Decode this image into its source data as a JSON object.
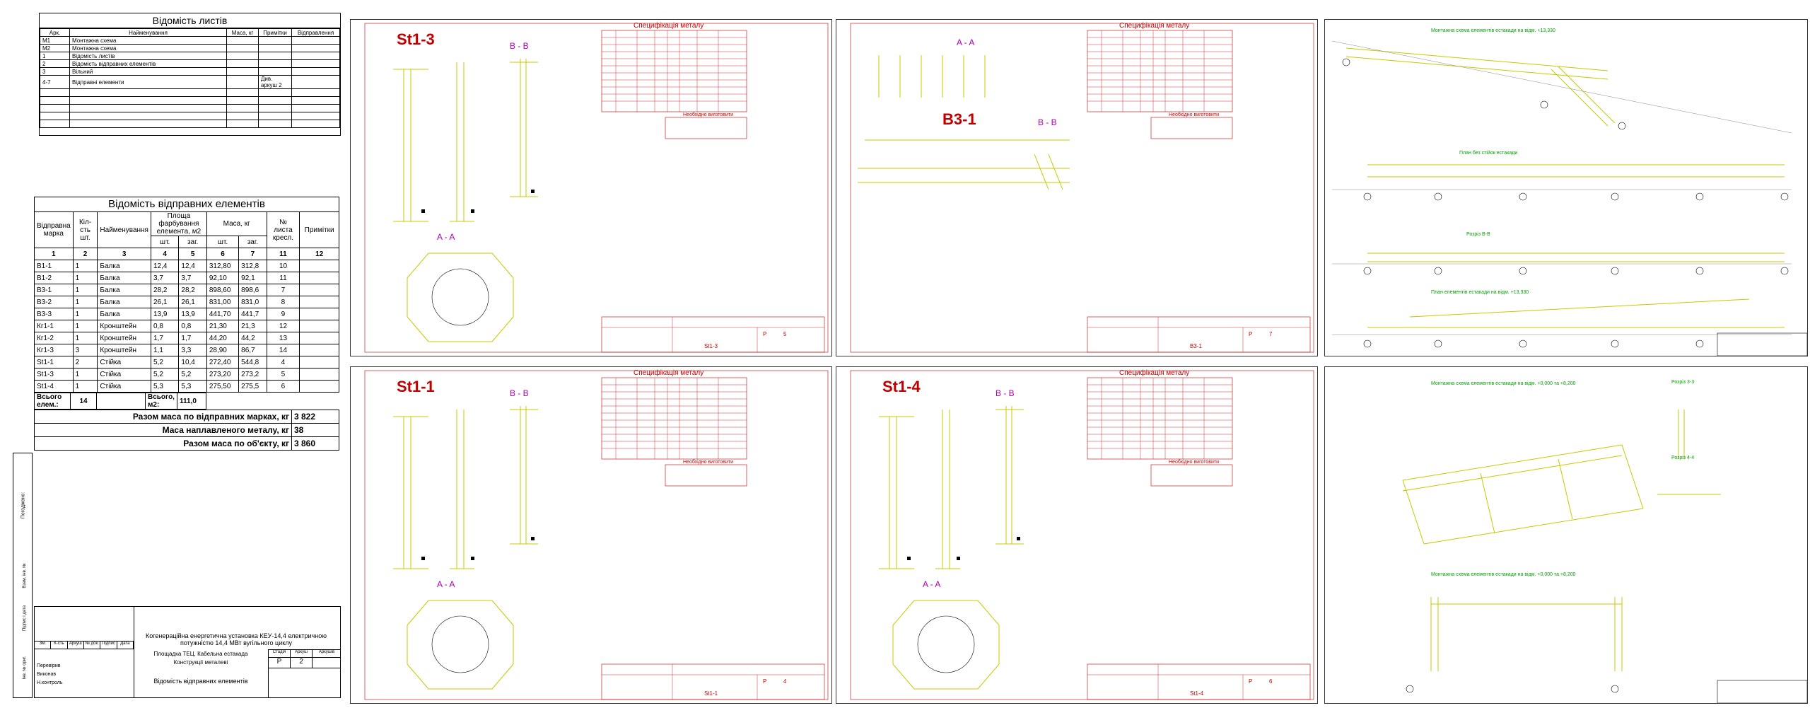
{
  "sheet_list": {
    "title": "Відомість листів",
    "headers": [
      "Арк.",
      "Найменування",
      "Маса, кг",
      "Примітки",
      "Відправлення"
    ],
    "rows": [
      [
        "М1",
        "Монтажна схема",
        "",
        "",
        ""
      ],
      [
        "М2",
        "Монтажна схема",
        "",
        "",
        ""
      ],
      [
        "1",
        "Відомість листів",
        "",
        "",
        ""
      ],
      [
        "2",
        "Відомість відправних елементів",
        "",
        "",
        ""
      ],
      [
        "3",
        "Вільний",
        "",
        "",
        ""
      ],
      [
        "4-7",
        "Відправні елементи",
        "",
        "Див. аркуш 2",
        ""
      ],
      [
        "",
        "",
        "",
        "",
        ""
      ],
      [
        "",
        "",
        "",
        "",
        ""
      ],
      [
        "",
        "",
        "",
        "",
        ""
      ],
      [
        "",
        "",
        "",
        "",
        ""
      ],
      [
        "",
        "",
        "",
        "",
        ""
      ]
    ]
  },
  "elements_list": {
    "title": "Відомість відправних елементів",
    "headers": {
      "mark": "Відправна марка",
      "qty": "Кіл-сть шт.",
      "name": "Найменування",
      "area": "Площа фарбування елемента, м2",
      "mass": "Маса, кг",
      "sheet": "№ листа кресл.",
      "notes": "Примітки",
      "pcs": "шт.",
      "total": "заг."
    },
    "col_numbers": [
      "1",
      "2",
      "3",
      "4",
      "5",
      "6",
      "7",
      "11",
      "12"
    ],
    "rows": [
      [
        "В1-1",
        "1",
        "Балка",
        "12,4",
        "12,4",
        "312,80",
        "312,8",
        "10",
        ""
      ],
      [
        "В1-2",
        "1",
        "Балка",
        "3,7",
        "3,7",
        "92,10",
        "92,1",
        "11",
        ""
      ],
      [
        "В3-1",
        "1",
        "Балка",
        "28,2",
        "28,2",
        "898,60",
        "898,6",
        "7",
        ""
      ],
      [
        "В3-2",
        "1",
        "Балка",
        "26,1",
        "26,1",
        "831,00",
        "831,0",
        "8",
        ""
      ],
      [
        "В3-3",
        "1",
        "Балка",
        "13,9",
        "13,9",
        "441,70",
        "441,7",
        "9",
        ""
      ],
      [
        "Кг1-1",
        "1",
        "Кронштейн",
        "0,8",
        "0,8",
        "21,30",
        "21,3",
        "12",
        ""
      ],
      [
        "Кг1-2",
        "1",
        "Кронштейн",
        "1,7",
        "1,7",
        "44,20",
        "44,2",
        "13",
        ""
      ],
      [
        "Кг1-3",
        "3",
        "Кронштейн",
        "1,1",
        "3,3",
        "28,90",
        "86,7",
        "14",
        ""
      ],
      [
        "St1-1",
        "2",
        "Стійка",
        "5,2",
        "10,4",
        "272,40",
        "544,8",
        "4",
        ""
      ],
      [
        "St1-3",
        "1",
        "Стійка",
        "5,2",
        "5,2",
        "273,20",
        "273,2",
        "5",
        ""
      ],
      [
        "St1-4",
        "1",
        "Стійка",
        "5,3",
        "5,3",
        "275,50",
        "275,5",
        "6",
        ""
      ]
    ],
    "total_elements_label": "Всього елем.:",
    "total_elements": "14",
    "total_area_label": "Всього, м2:",
    "total_area": "111,0",
    "sum_rows": [
      {
        "label": "Разом маса по відправних марках, кг",
        "value": "3 822"
      },
      {
        "label": "Маса наплавленого металу, кг",
        "value": "38"
      },
      {
        "label": "Разом маса по об'єкту, кг",
        "value": "3 860"
      }
    ]
  },
  "side_stamp": [
    "Погоджено:",
    "Інв. № ориг.",
    "Підпис і дата",
    "Взам. інв. №"
  ],
  "title_block": {
    "project": "Когенераційна енергетична установка КЕУ-14,4 електричною потужністю 14,4 МВт вугільного циклу",
    "site": "Площадка ТЕЦ. Кабельна естакада",
    "section": "Конструкції металеві",
    "sheet_name": "Відомість відправних елементів",
    "stage_label": "Стадія",
    "sheet_label": "Аркуш",
    "sheets_label": "Аркушів",
    "stage": "Р",
    "sheet": "2",
    "cols": [
      "Зм.",
      "К-сть",
      "Аркуш",
      "№ док.",
      "Підпис",
      "Дата"
    ],
    "roles": [
      "Перевірив",
      "Виконав",
      "Н.контроль"
    ]
  },
  "drawings": [
    {
      "label": "St1-3",
      "section_bb": "B - B",
      "section_aa": "A - A",
      "spec_title": "Специфікація металу",
      "need_title": "Необхідно виготовити",
      "stage": "Р",
      "sheet": "5",
      "stamp": "St1-3"
    },
    {
      "label": "B3-1",
      "section_bb": "B - B",
      "section_aa": "A - A",
      "spec_title": "Специфікація металу",
      "need_title": "Необхідно виготовити",
      "stage": "Р",
      "sheet": "7",
      "stamp": "B3-1"
    },
    {
      "label": "St1-1",
      "section_bb": "B - B",
      "section_aa": "A - A",
      "spec_title": "Специфікація металу",
      "need_title": "Необхідно виготовити",
      "stage": "Р",
      "sheet": "4",
      "stamp": "St1-1"
    },
    {
      "label": "St1-4",
      "section_bb": "B - B",
      "section_aa": "A - A",
      "spec_title": "Специфікація металу",
      "need_title": "Необхідно виготовити",
      "stage": "Р",
      "sheet": "6",
      "stamp": "St1-4"
    }
  ],
  "scheme_titles": [
    "Монтажна схема елементів естакади на відм. +13,330",
    "План без стійок естакади",
    "Розріз В-В",
    "План елементів естакади на відм. +13,330",
    "Монтажна схема елементів естакади на відм. +0,000 та +8,200",
    "Розріз 3-3",
    "Розріз 4-4",
    "Монтажна схема елементів естакади на відм. +0,000 та +8,200"
  ]
}
